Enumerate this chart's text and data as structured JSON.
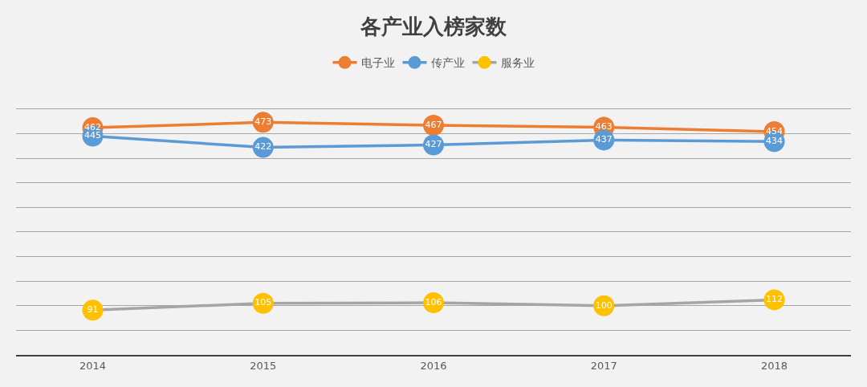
{
  "chart_data": {
    "type": "line",
    "title": "各产业入榜家数",
    "categories": [
      "2014",
      "2015",
      "2016",
      "2017",
      "2018"
    ],
    "series": [
      {
        "name": "电子业",
        "color": "#ed7d31",
        "values": [
          462,
          473,
          467,
          463,
          454
        ]
      },
      {
        "name": "传产业",
        "color": "#5b9bd5",
        "values": [
          445,
          422,
          427,
          437,
          434
        ]
      },
      {
        "name": "服务业",
        "color": "#a5a5a5",
        "colors": [
          "#ffc000",
          "#ffc000",
          "#ffc000",
          "#ffc000",
          "#ffc000"
        ],
        "values": [
          91,
          105,
          106,
          100,
          112
        ]
      }
    ],
    "tick_labels": "x",
    "grid": "y",
    "legend": "top",
    "marker": "circle",
    "line_style": "solid",
    "data_labels": true
  }
}
